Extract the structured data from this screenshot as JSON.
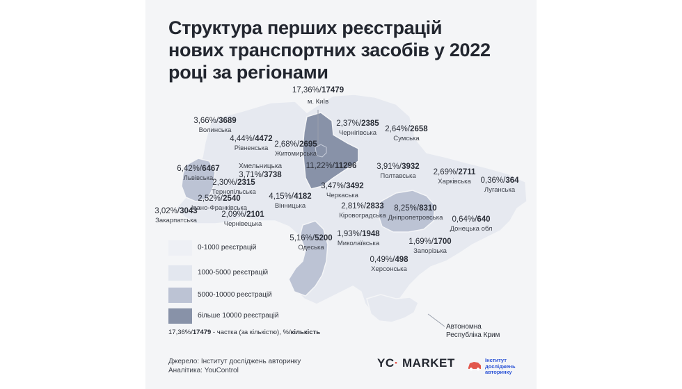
{
  "title": "Структура перших реєстрацій нових транспортних засобів у 2022 році за регіонами",
  "colors": {
    "base": "#e8ebf2",
    "low": "#e8ebf2",
    "mid": "#c9cfdc",
    "high": "#aab3c8",
    "top": "#8892a8",
    "kyiv_leader": "#9aa0ac",
    "accent_logo": "#e2574c",
    "brand_blue": "#2c54d6"
  },
  "regions": [
    {
      "id": "kyiv",
      "pct": "17,36%",
      "cnt": "17479",
      "name": "м. Київ"
    },
    {
      "id": "volyn",
      "pct": "3,66%",
      "cnt": "3689",
      "name": "Волинська"
    },
    {
      "id": "rivne",
      "pct": "4,44%",
      "cnt": "4472",
      "name": "Рівненська"
    },
    {
      "id": "zhytomyr",
      "pct": "2,68%",
      "cnt": "2695",
      "name": "Житомирська"
    },
    {
      "id": "chernihiv",
      "pct": "2,37%",
      "cnt": "2385",
      "name": "Чернігівська"
    },
    {
      "id": "sumy",
      "pct": "2,64%",
      "cnt": "2658",
      "name": "Сумська"
    },
    {
      "id": "lviv",
      "pct": "6,42%",
      "cnt": "6467",
      "name": "Львівська"
    },
    {
      "id": "khmelnytskyi",
      "pct": "3,71%",
      "cnt": "3738",
      "name": "Хмельницька"
    },
    {
      "id": "kyiv_obl",
      "pct": "11,22%",
      "cnt": "11296",
      "name": ""
    },
    {
      "id": "poltava",
      "pct": "3,91%",
      "cnt": "3932",
      "name": "Полтавська"
    },
    {
      "id": "kharkiv",
      "pct": "2,69%",
      "cnt": "2711",
      "name": "Харківська"
    },
    {
      "id": "luhansk",
      "pct": "0,36%",
      "cnt": "364",
      "name": "Луганська"
    },
    {
      "id": "ternopil",
      "pct": "2,30%",
      "cnt": "2315",
      "name": "Тернопільська"
    },
    {
      "id": "cherkasy",
      "pct": "3,47%",
      "cnt": "3492",
      "name": "Черкаська"
    },
    {
      "id": "ivano",
      "pct": "2,52%",
      "cnt": "2540",
      "name": "Івано-Франківська"
    },
    {
      "id": "vinnytsia",
      "pct": "4,15%",
      "cnt": "4182",
      "name": "Вінницька"
    },
    {
      "id": "kirovohrad",
      "pct": "2,81%",
      "cnt": "2833",
      "name": "Кіровоградська"
    },
    {
      "id": "dnipro",
      "pct": "8,25%",
      "cnt": "8310",
      "name": "Дніпропетровська"
    },
    {
      "id": "zakarpattia",
      "pct": "3,02%",
      "cnt": "3043",
      "name": "Закарпатська"
    },
    {
      "id": "chernivtsi",
      "pct": "2,09%",
      "cnt": "2101",
      "name": "Чернівецька"
    },
    {
      "id": "donetsk",
      "pct": "0,64%",
      "cnt": "640",
      "name": "Донецька обл"
    },
    {
      "id": "mykolaiv",
      "pct": "1,93%",
      "cnt": "1948",
      "name": "Миколаївська"
    },
    {
      "id": "odesa",
      "pct": "5,16%",
      "cnt": "5200",
      "name": "Одеська"
    },
    {
      "id": "zaporizhzhia",
      "pct": "1,69%",
      "cnt": "1700",
      "name": "Запорізька"
    },
    {
      "id": "kherson",
      "pct": "0,49%",
      "cnt": "498",
      "name": "Херсонська"
    }
  ],
  "crimea_label": "Автономна Республіка Крим",
  "legend": [
    {
      "label": "0-1000 реєстрацій",
      "color": "#eef0f5"
    },
    {
      "label": "1000-5000 реєстрацій",
      "color": "#e3e7ef"
    },
    {
      "label": "5000-10000 реєстрацій",
      "color": "#bcc3d4"
    },
    {
      "label": "більше 10000 реєстрацій",
      "color": "#8892a8"
    }
  ],
  "note": {
    "prefix": "17,36%/",
    "bold": "17479",
    "suffix": " - частка (за кількістю), %/",
    "bold2": "кількість"
  },
  "source": {
    "line1": "Джерело: Інститут досліджень авторинку",
    "line2": "Аналітика: YouControl"
  },
  "logo_yc": {
    "left": "YC",
    "dot": "·",
    "right": " MARKET"
  },
  "logo_institute": {
    "line1": "Інститут",
    "line2": "досліджень",
    "line3": "авторинку"
  }
}
